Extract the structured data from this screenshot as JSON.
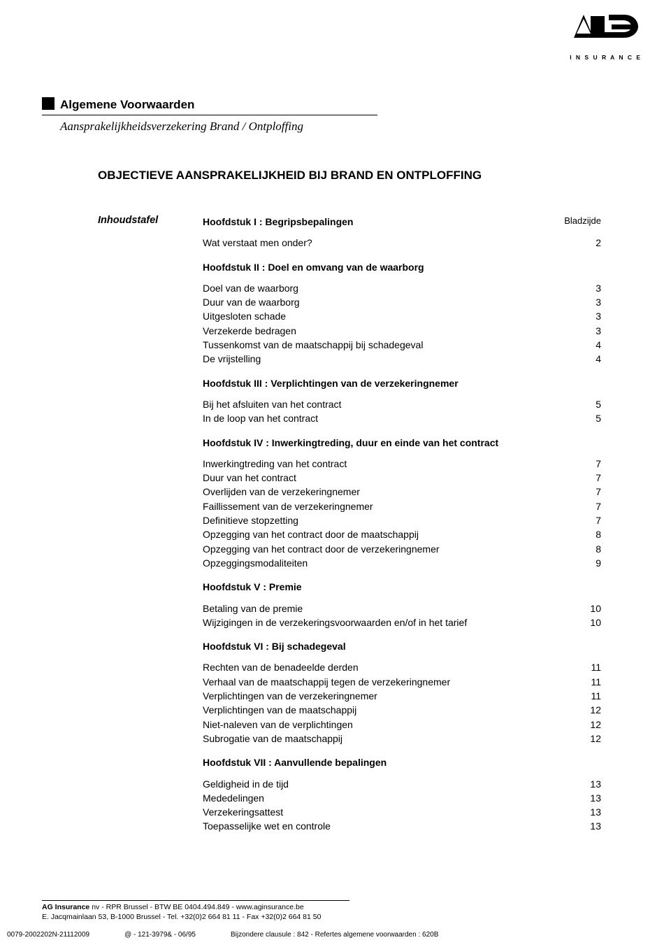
{
  "logo": {
    "letters": "AG",
    "subtext": "I N S U R A N C E",
    "text_color": "#000000"
  },
  "header": {
    "title": "Algemene Voorwaarden",
    "subtitle": "Aansprakelijkheidsverzekering Brand / Ontploffing"
  },
  "main_title": "OBJECTIEVE AANSPRAKELIJKHEID  BIJ BRAND EN ONTPLOFFING",
  "left_label": "Inhoudstafel",
  "page_label": "Bladzijde",
  "chapters": [
    {
      "title": "Hoofdstuk I : Begripsbepalingen",
      "title_has_page_label": true,
      "entries": [
        {
          "label": "Wat verstaat men onder?",
          "page": "2"
        }
      ]
    },
    {
      "title": "Hoofdstuk II : Doel en omvang van de waarborg",
      "entries": [
        {
          "label": "Doel van de waarborg",
          "page": "3"
        },
        {
          "label": "Duur van de waarborg",
          "page": "3"
        },
        {
          "label": "Uitgesloten schade",
          "page": "3"
        },
        {
          "label": "Verzekerde bedragen",
          "page": "3"
        },
        {
          "label": "Tussenkomst van de maatschappij bij schadegeval",
          "page": "4"
        },
        {
          "label": "De vrijstelling",
          "page": "4"
        }
      ]
    },
    {
      "title": "Hoofdstuk III : Verplichtingen van de verzekeringnemer",
      "entries": [
        {
          "label": "Bij het afsluiten van het contract",
          "page": "5"
        },
        {
          "label": "In de loop van het contract",
          "page": "5"
        }
      ]
    },
    {
      "title": "Hoofdstuk IV : Inwerkingtreding, duur en einde van het contract",
      "entries": [
        {
          "label": "Inwerkingtreding van het contract",
          "page": "7"
        },
        {
          "label": "Duur van het contract",
          "page": "7"
        },
        {
          "label": "Overlijden van de verzekeringnemer",
          "page": "7"
        },
        {
          "label": "Faillissement van de verzekeringnemer",
          "page": "7"
        },
        {
          "label": "Definitieve stopzetting",
          "page": "7"
        },
        {
          "label": "Opzegging van het contract door de maatschappij",
          "page": "8"
        },
        {
          "label": "Opzegging van het contract door de verzekeringnemer",
          "page": "8"
        },
        {
          "label": "Opzeggingsmodaliteiten",
          "page": "9"
        }
      ]
    },
    {
      "title": "Hoofdstuk V : Premie",
      "entries": [
        {
          "label": "Betaling van de premie",
          "page": "10"
        },
        {
          "label": "Wijzigingen in de verzekeringsvoorwaarden en/of in het tarief",
          "page": "10"
        }
      ]
    },
    {
      "title": "Hoofdstuk VI : Bij schadegeval",
      "entries": [
        {
          "label": "Rechten van de benadeelde derden",
          "page": "11"
        },
        {
          "label": "Verhaal van de maatschappij tegen de verzekeringnemer",
          "page": "11"
        },
        {
          "label": "Verplichtingen van de verzekeringnemer",
          "page": "11"
        },
        {
          "label": "Verplichtingen van de maatschappij",
          "page": "12"
        },
        {
          "label": "Niet-naleven van de verplichtingen",
          "page": "12"
        },
        {
          "label": "Subrogatie van de maatschappij",
          "page": "12"
        }
      ]
    },
    {
      "title": "Hoofdstuk VII : Aanvullende bepalingen",
      "entries": [
        {
          "label": "Geldigheid in de tijd",
          "page": "13"
        },
        {
          "label": "Mededelingen",
          "page": "13"
        },
        {
          "label": "Verzekeringsattest",
          "page": "13"
        },
        {
          "label": "Toepasselijke wet en controle",
          "page": "13"
        }
      ]
    }
  ],
  "footer": {
    "line1_bold": "AG Insurance",
    "line1_rest": " nv - RPR Brussel - BTW BE 0404.494.849 - www.aginsurance.be",
    "line2": "E. Jacqmainlaan 53, B-1000 Brussel - Tel. +32(0)2 664 81 11 - Fax +32(0)2 664 81 50"
  },
  "bottom_line": {
    "c1": "0079-2002202N-21112009",
    "c2": "@ - 121-3979& - 06/95",
    "c3": "Bijzondere clausule : 842  -  Refertes algemene voorwaarden : 620B"
  }
}
